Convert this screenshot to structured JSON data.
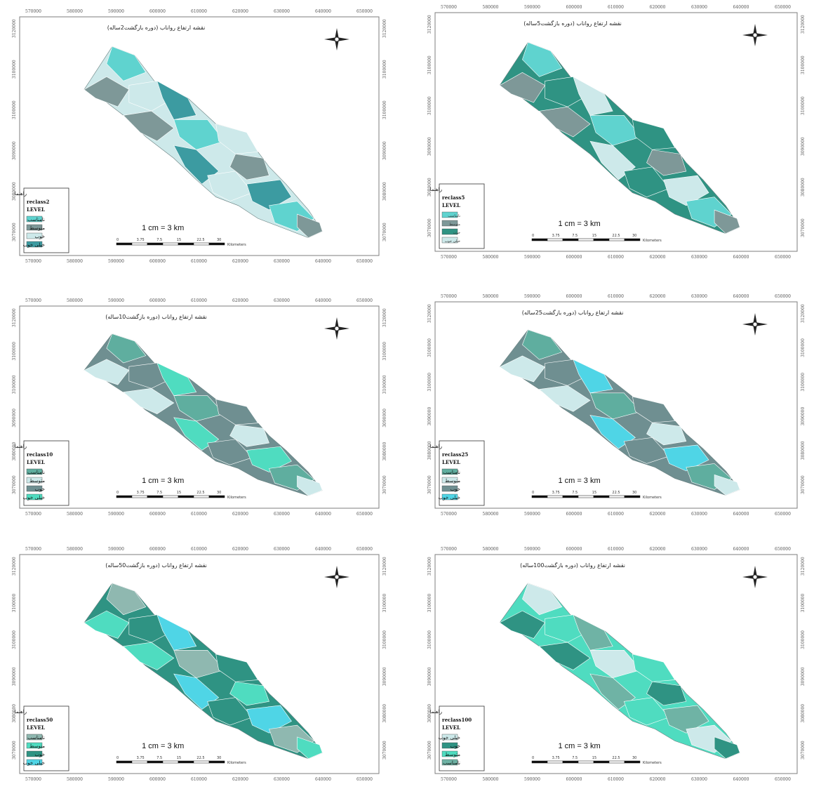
{
  "colors": {
    "unsuitable": "#5fd3cf",
    "medium": "#7e9898",
    "good": "#cde9ea",
    "very_good": "#3c9ba1",
    "teal_dark": "#2f9383",
    "mint": "#4fdcc0",
    "cyan": "#4fd5e6"
  },
  "x_ticks": [
    "570000",
    "580000",
    "590000",
    "600000",
    "610000",
    "620000",
    "630000",
    "640000",
    "650000"
  ],
  "y_ticks": [
    "3120000",
    "3100000",
    "3100000",
    "3090000",
    "3080000",
    "3070000"
  ],
  "scale_text": "1 cm = 3 km",
  "scalebar": {
    "labels": [
      "0",
      "3.75",
      "7.5",
      "15",
      "22.5",
      "30"
    ],
    "unit": "Kilometers"
  },
  "north_arrow": "compass-rose-icon",
  "panels": [
    {
      "title": "نقشه ارتفاع رواناب (دوره بازگشت2ساله)",
      "legend": {
        "header": "راهنما",
        "layer": "reclass2",
        "field": "LEVEL",
        "items": [
          {
            "label": "نامناسب",
            "color": "#5fd3cf"
          },
          {
            "label": "متوسط",
            "color": "#7e9898"
          },
          {
            "label": "خوب",
            "color": "#cde9ea"
          },
          {
            "label": "خیلی خوب",
            "color": "#3c9ba1"
          }
        ]
      }
    },
    {
      "title": "نقشه ارتفاع رواناب (دوره بازگشت5ساله)",
      "legend": {
        "header": "راهنما",
        "layer": "reclass5",
        "field": "LEVEL",
        "small": true,
        "items": [
          {
            "label": "نامناسب",
            "color": "#5fd3cf"
          },
          {
            "label": "متوسط",
            "color": "#7e9898"
          },
          {
            "label": "خوب",
            "color": "#2f9383"
          },
          {
            "label": "خیلی خوب",
            "color": "#cde9ea"
          }
        ]
      }
    },
    {
      "title": "نقشه ارتفاع رواناب (دوره بازگشت10ساله)",
      "legend": {
        "header": "راهنما",
        "layer": "reclass10",
        "field": "LEVEL",
        "items": [
          {
            "label": "نامناسب",
            "color": "#5fae9f"
          },
          {
            "label": "متوسط",
            "color": "#cde9ea"
          },
          {
            "label": "خوب",
            "color": "#6f8f91"
          },
          {
            "label": "خیلی خوب",
            "color": "#4fdcc0"
          }
        ]
      }
    },
    {
      "title": "نقشه ارتفاع رواناب (دوره بازگشت25ساله)",
      "legend": {
        "header": "راهنما",
        "layer": "reclass25",
        "field": "LEVEL",
        "items": [
          {
            "label": "نامناسب",
            "color": "#5fae9f"
          },
          {
            "label": "متوسط",
            "color": "#cde9ea"
          },
          {
            "label": "خوب",
            "color": "#6f8f91"
          },
          {
            "label": "خیلی خوب",
            "color": "#4fd5e6"
          }
        ]
      }
    },
    {
      "title": "نقشه ارتفاع رواناب (دوره بازگشت50ساله)",
      "legend": {
        "header": "راهنما",
        "layer": "reclass50",
        "field": "LEVEL",
        "items": [
          {
            "label": "نامناسب",
            "color": "#8fb8b0"
          },
          {
            "label": "متوسط",
            "color": "#4fdcc0"
          },
          {
            "label": "خوب",
            "color": "#2f9383"
          },
          {
            "label": "خیلی خوب",
            "color": "#4fd5e6"
          }
        ]
      }
    },
    {
      "title": "نقشه ارتفاع رواناب (دوره بازگشت100ساله)",
      "legend": {
        "header": "راهنما",
        "layer": "reclass100",
        "field": "LEVEL",
        "items": [
          {
            "label": "خیلی خوب",
            "color": "#cde9ea"
          },
          {
            "label": "خوب",
            "color": "#2f9383"
          },
          {
            "label": "متوسط",
            "color": "#4fdcc0"
          },
          {
            "label": "نامناسب",
            "color": "#6fb3a5"
          }
        ]
      }
    }
  ]
}
